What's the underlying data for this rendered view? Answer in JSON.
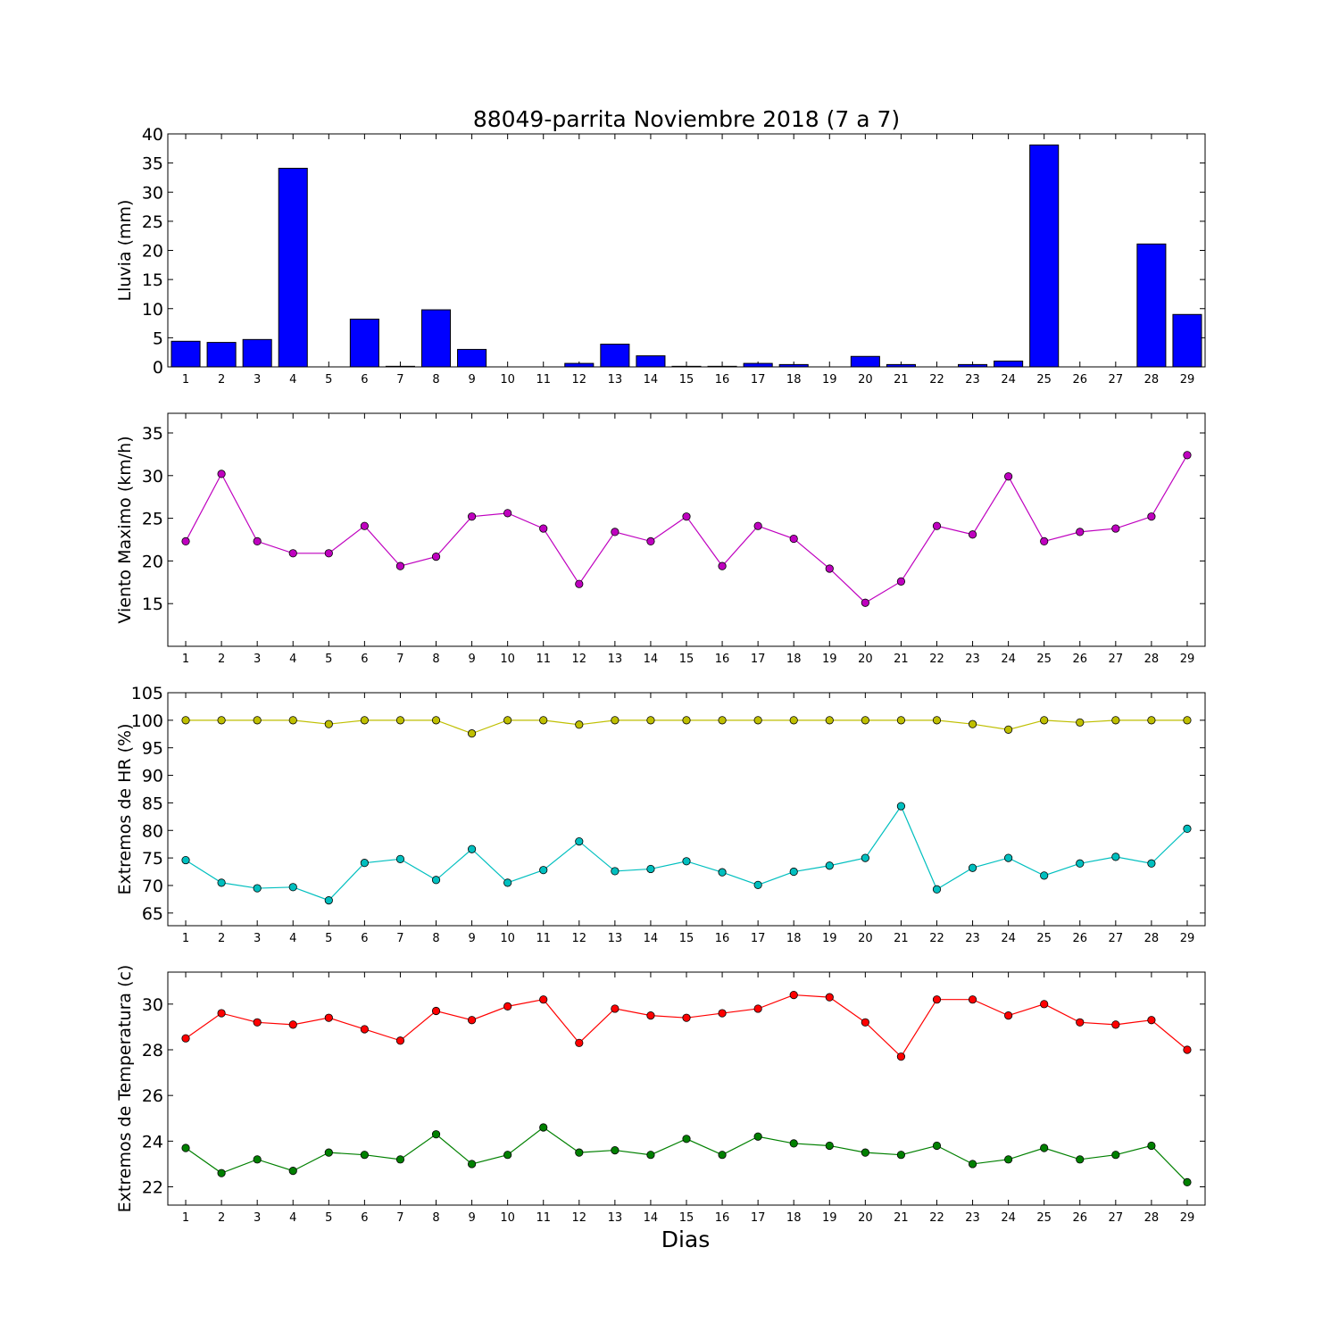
{
  "chart_data": [
    {
      "type": "bar",
      "title": "88049-parrita Noviembre 2018  (7 a 7)",
      "ylabel": "Lluvia (mm)",
      "categories": [
        "1",
        "2",
        "3",
        "4",
        "5",
        "6",
        "7",
        "8",
        "9",
        "10",
        "11",
        "12",
        "13",
        "14",
        "15",
        "16",
        "17",
        "18",
        "19",
        "20",
        "21",
        "22",
        "23",
        "24",
        "25",
        "26",
        "27",
        "28",
        "29"
      ],
      "values": [
        4.4,
        4.2,
        4.7,
        34.1,
        0,
        8.2,
        0.1,
        9.8,
        3.0,
        0,
        0,
        0.6,
        3.9,
        1.9,
        0.1,
        0.1,
        0.6,
        0.4,
        0,
        1.8,
        0.4,
        0,
        0.4,
        1.0,
        38.1,
        0,
        0,
        21.1,
        9.0
      ],
      "ylim": [
        0,
        40
      ],
      "yticks": [
        0,
        5,
        10,
        15,
        20,
        25,
        30,
        35,
        40
      ],
      "color": "#0000ff"
    },
    {
      "type": "line",
      "ylabel": "Viento Maximo (km/h)",
      "categories": [
        "1",
        "2",
        "3",
        "4",
        "5",
        "6",
        "7",
        "8",
        "9",
        "10",
        "11",
        "12",
        "13",
        "14",
        "15",
        "16",
        "17",
        "18",
        "19",
        "20",
        "21",
        "22",
        "23",
        "24",
        "25",
        "26",
        "27",
        "28",
        "29"
      ],
      "series": [
        {
          "color": "#bf00bf",
          "values": [
            22.3,
            30.2,
            22.3,
            20.9,
            20.9,
            24.1,
            19.4,
            20.5,
            25.2,
            25.6,
            23.8,
            17.3,
            23.4,
            22.3,
            25.2,
            19.4,
            24.1,
            22.6,
            19.1,
            15.1,
            17.6,
            24.1,
            23.1,
            29.9,
            22.3,
            23.4,
            23.8,
            25.2,
            32.4
          ]
        }
      ],
      "ylim": [
        10,
        37.3
      ],
      "yticks": [
        15,
        20,
        25,
        30,
        35
      ]
    },
    {
      "type": "line",
      "ylabel": "Extremos de HR (%)",
      "categories": [
        "1",
        "2",
        "3",
        "4",
        "5",
        "6",
        "7",
        "8",
        "9",
        "10",
        "11",
        "12",
        "13",
        "14",
        "15",
        "16",
        "17",
        "18",
        "19",
        "20",
        "21",
        "22",
        "23",
        "24",
        "25",
        "26",
        "27",
        "28",
        "29"
      ],
      "series": [
        {
          "color": "#bfbf00",
          "values": [
            100,
            100,
            100,
            100,
            99.3,
            100,
            100,
            100,
            97.6,
            100,
            100,
            99.2,
            100,
            100,
            100,
            100,
            100,
            100,
            100,
            100,
            100,
            100,
            99.3,
            98.3,
            100,
            99.6,
            100,
            100,
            100
          ]
        },
        {
          "color": "#00bfbf",
          "values": [
            74.6,
            70.5,
            69.5,
            69.7,
            67.3,
            74.1,
            74.8,
            71.0,
            76.6,
            70.5,
            72.8,
            78.0,
            72.6,
            73.0,
            74.4,
            72.4,
            70.1,
            72.5,
            73.6,
            75.0,
            84.4,
            69.3,
            73.2,
            75.0,
            71.8,
            74.0,
            75.2,
            74.0,
            80.3
          ]
        }
      ],
      "ylim": [
        62.7,
        105
      ],
      "yticks": [
        65,
        70,
        75,
        80,
        85,
        90,
        95,
        100,
        105
      ]
    },
    {
      "type": "line",
      "ylabel": "Extremos de Temperatura (c)",
      "xlabel": "Dias",
      "categories": [
        "1",
        "2",
        "3",
        "4",
        "5",
        "6",
        "7",
        "8",
        "9",
        "10",
        "11",
        "12",
        "13",
        "14",
        "15",
        "16",
        "17",
        "18",
        "19",
        "20",
        "21",
        "22",
        "23",
        "24",
        "25",
        "26",
        "27",
        "28",
        "29"
      ],
      "series": [
        {
          "color": "#ff0000",
          "values": [
            28.5,
            29.6,
            29.2,
            29.1,
            29.4,
            28.9,
            28.4,
            29.7,
            29.3,
            29.9,
            30.2,
            28.3,
            29.8,
            29.5,
            29.4,
            29.6,
            29.8,
            30.4,
            30.3,
            29.2,
            27.7,
            30.2,
            30.2,
            29.5,
            30.0,
            29.2,
            29.1,
            29.3,
            28.0
          ]
        },
        {
          "color": "#008000",
          "values": [
            23.7,
            22.6,
            23.2,
            22.7,
            23.5,
            23.4,
            23.2,
            24.3,
            23.0,
            23.4,
            24.6,
            23.5,
            23.6,
            23.4,
            24.1,
            23.4,
            24.2,
            23.9,
            23.8,
            23.5,
            23.4,
            23.8,
            23.0,
            23.2,
            23.7,
            23.2,
            23.4,
            23.8,
            22.2
          ]
        }
      ],
      "ylim": [
        21.2,
        31.4
      ],
      "yticks": [
        22,
        24,
        26,
        28,
        30
      ]
    }
  ]
}
